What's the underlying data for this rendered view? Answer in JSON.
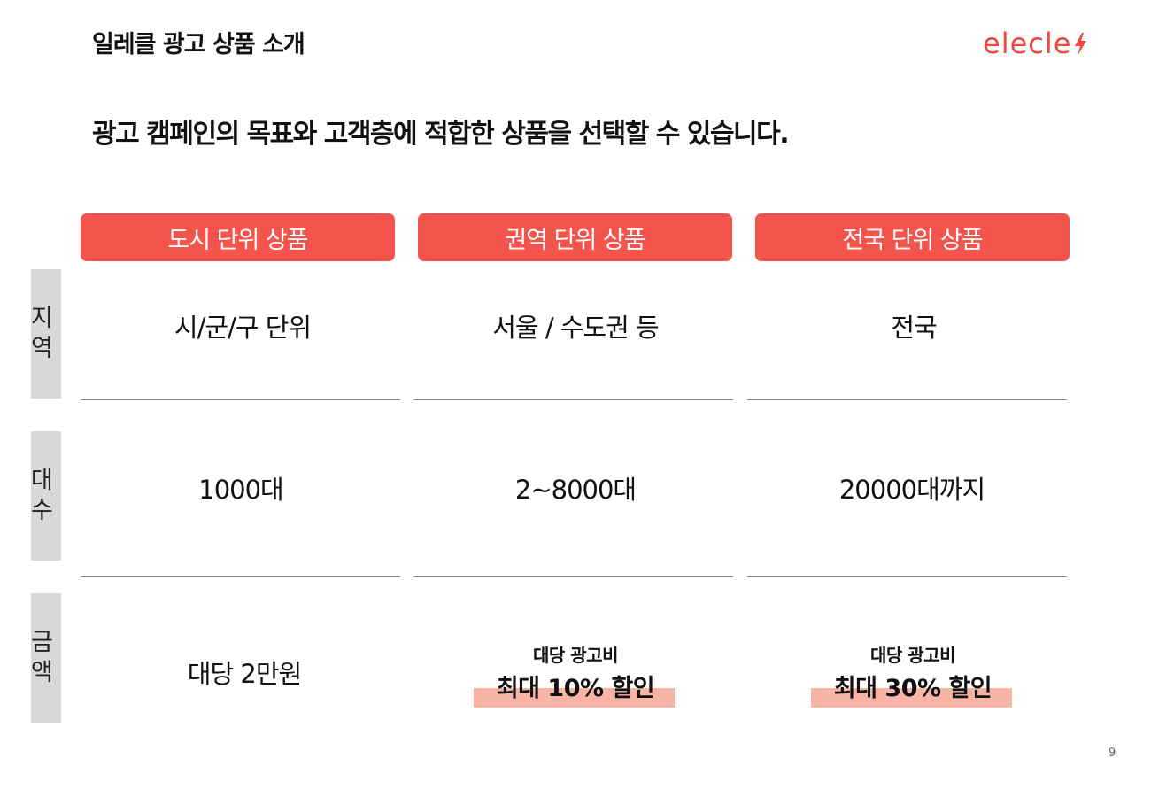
{
  "header": {
    "title": "일레클 광고 상품 소개",
    "logo_text": "elecle",
    "logo_color": "#f1473f",
    "logo_icon": "lightning-bolt-icon"
  },
  "subtitle": "광고 캠페인의 목표와 고객층에 적합한 상품을 선택할 수 있습니다.",
  "columns": [
    {
      "header": "도시 단위 상품",
      "region": "시/군/구 단위",
      "count": "1000대",
      "price": "대당 2만원"
    },
    {
      "header": "권역 단위 상품",
      "region": "서울 / 수도권 등",
      "count": "2~8000대",
      "price_small": "대당 광고비",
      "price_big": "최대 10% 할인"
    },
    {
      "header": "전국 단위 상품",
      "region": "전국",
      "count": "20000대까지",
      "price_small": "대당 광고비",
      "price_big": "최대 30% 할인"
    }
  ],
  "row_labels": {
    "region": "지역",
    "count": "대수",
    "price": "금액"
  },
  "colors": {
    "accent": "#f3554d",
    "highlight": "#f8b5a6",
    "row_label_bg": "#d8d8d8"
  },
  "page_number": "9"
}
